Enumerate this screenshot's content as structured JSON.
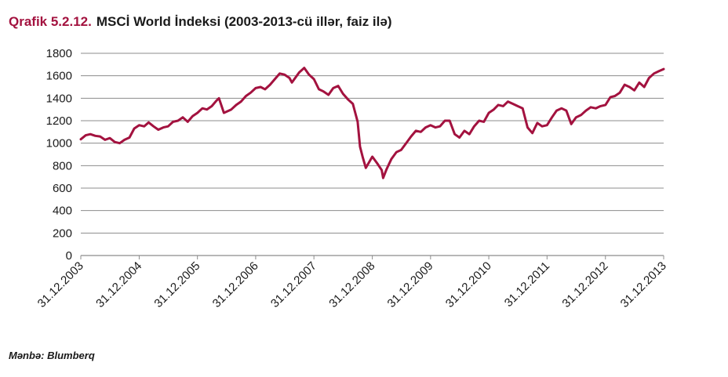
{
  "header": {
    "figure_number": "Qrafik 5.2.12.",
    "title": "MSCİ World İndeksi (2003-2013-cü illər, faiz ilə)"
  },
  "footer": {
    "source": "Mənbə: Blumberq"
  },
  "colors": {
    "series": "#a3123f",
    "grid": "#8c8c8c",
    "figure_number": "#a3123f"
  },
  "chart_data": {
    "type": "line",
    "title": "MSCİ World İndeksi (2003-2013-cü illər, faiz ilə)",
    "xlabel": "",
    "ylabel": "",
    "ylim": [
      0,
      1800
    ],
    "yticks": [
      0,
      200,
      400,
      600,
      800,
      1000,
      1200,
      1400,
      1600,
      1800
    ],
    "xticks": [
      "31.12.2003",
      "31.12.2004",
      "31.12.2005",
      "31.12.2006",
      "31.12.2007",
      "31.12.2008",
      "31.12.2009",
      "31.12.2010",
      "31.12.2011",
      "31.12.2012",
      "31.12.2013"
    ],
    "grid": true,
    "legend": "none",
    "series": [
      {
        "name": "",
        "points": [
          [
            "31.12.2003",
            1035
          ],
          [
            "31.01.2004",
            1070
          ],
          [
            "29.02.2004",
            1080
          ],
          [
            "31.03.2004",
            1065
          ],
          [
            "30.04.2004",
            1060
          ],
          [
            "31.05.2004",
            1030
          ],
          [
            "30.06.2004",
            1045
          ],
          [
            "31.07.2004",
            1010
          ],
          [
            "31.08.2004",
            1000
          ],
          [
            "30.09.2004",
            1030
          ],
          [
            "31.10.2004",
            1050
          ],
          [
            "30.11.2004",
            1130
          ],
          [
            "31.12.2004",
            1160
          ],
          [
            "31.01.2005",
            1150
          ],
          [
            "28.02.2005",
            1185
          ],
          [
            "31.03.2005",
            1150
          ],
          [
            "30.04.2005",
            1120
          ],
          [
            "31.05.2005",
            1140
          ],
          [
            "30.06.2005",
            1150
          ],
          [
            "31.07.2005",
            1190
          ],
          [
            "31.08.2005",
            1200
          ],
          [
            "30.09.2005",
            1230
          ],
          [
            "31.10.2005",
            1190
          ],
          [
            "30.11.2005",
            1240
          ],
          [
            "31.12.2005",
            1270
          ],
          [
            "31.01.2006",
            1310
          ],
          [
            "28.02.2006",
            1300
          ],
          [
            "31.03.2006",
            1330
          ],
          [
            "30.04.2006",
            1380
          ],
          [
            "15.05.2006",
            1400
          ],
          [
            "15.06.2006",
            1270
          ],
          [
            "31.07.2006",
            1300
          ],
          [
            "31.08.2006",
            1340
          ],
          [
            "30.09.2006",
            1370
          ],
          [
            "31.10.2006",
            1420
          ],
          [
            "30.11.2006",
            1450
          ],
          [
            "31.12.2006",
            1490
          ],
          [
            "31.01.2007",
            1500
          ],
          [
            "28.02.2007",
            1480
          ],
          [
            "31.03.2007",
            1520
          ],
          [
            "30.04.2007",
            1570
          ],
          [
            "31.05.2007",
            1620
          ],
          [
            "30.06.2007",
            1610
          ],
          [
            "31.07.2007",
            1580
          ],
          [
            "15.08.2007",
            1540
          ],
          [
            "30.09.2007",
            1630
          ],
          [
            "31.10.2007",
            1670
          ],
          [
            "30.11.2007",
            1610
          ],
          [
            "31.12.2007",
            1570
          ],
          [
            "31.01.2008",
            1480
          ],
          [
            "29.02.2008",
            1460
          ],
          [
            "31.03.2008",
            1430
          ],
          [
            "30.04.2008",
            1490
          ],
          [
            "31.05.2008",
            1510
          ],
          [
            "30.06.2008",
            1440
          ],
          [
            "31.07.2008",
            1390
          ],
          [
            "31.08.2008",
            1350
          ],
          [
            "30.09.2008",
            1190
          ],
          [
            "15.10.2008",
            970
          ],
          [
            "31.10.2008",
            880
          ],
          [
            "20.11.2008",
            780
          ],
          [
            "31.12.2008",
            880
          ],
          [
            "31.01.2009",
            820
          ],
          [
            "28.02.2009",
            760
          ],
          [
            "09.03.2009",
            690
          ],
          [
            "31.03.2009",
            770
          ],
          [
            "30.04.2009",
            860
          ],
          [
            "31.05.2009",
            920
          ],
          [
            "30.06.2009",
            940
          ],
          [
            "31.07.2009",
            1000
          ],
          [
            "31.08.2009",
            1060
          ],
          [
            "30.09.2009",
            1110
          ],
          [
            "31.10.2009",
            1100
          ],
          [
            "30.11.2009",
            1140
          ],
          [
            "31.12.2009",
            1160
          ],
          [
            "31.01.2010",
            1140
          ],
          [
            "28.02.2010",
            1150
          ],
          [
            "31.03.2010",
            1200
          ],
          [
            "30.04.2010",
            1200
          ],
          [
            "31.05.2010",
            1080
          ],
          [
            "30.06.2010",
            1050
          ],
          [
            "31.07.2010",
            1110
          ],
          [
            "31.08.2010",
            1080
          ],
          [
            "30.09.2010",
            1150
          ],
          [
            "31.10.2010",
            1200
          ],
          [
            "30.11.2010",
            1190
          ],
          [
            "31.12.2010",
            1270
          ],
          [
            "31.01.2011",
            1300
          ],
          [
            "28.02.2011",
            1340
          ],
          [
            "31.03.2011",
            1330
          ],
          [
            "30.04.2011",
            1370
          ],
          [
            "31.05.2011",
            1350
          ],
          [
            "30.06.2011",
            1330
          ],
          [
            "31.07.2011",
            1310
          ],
          [
            "31.08.2011",
            1140
          ],
          [
            "30.09.2011",
            1090
          ],
          [
            "31.10.2011",
            1180
          ],
          [
            "30.11.2011",
            1150
          ],
          [
            "31.12.2011",
            1160
          ],
          [
            "31.01.2012",
            1230
          ],
          [
            "29.02.2012",
            1290
          ],
          [
            "31.03.2012",
            1310
          ],
          [
            "30.04.2012",
            1290
          ],
          [
            "31.05.2012",
            1170
          ],
          [
            "30.06.2012",
            1230
          ],
          [
            "31.07.2012",
            1250
          ],
          [
            "31.08.2012",
            1290
          ],
          [
            "30.09.2012",
            1320
          ],
          [
            "31.10.2012",
            1310
          ],
          [
            "30.11.2012",
            1330
          ],
          [
            "31.12.2012",
            1340
          ],
          [
            "31.01.2013",
            1410
          ],
          [
            "28.02.2013",
            1420
          ],
          [
            "31.03.2013",
            1450
          ],
          [
            "30.04.2013",
            1520
          ],
          [
            "31.05.2013",
            1500
          ],
          [
            "30.06.2013",
            1470
          ],
          [
            "31.07.2013",
            1540
          ],
          [
            "31.08.2013",
            1500
          ],
          [
            "30.09.2013",
            1580
          ],
          [
            "31.10.2013",
            1620
          ],
          [
            "30.11.2013",
            1640
          ],
          [
            "31.12.2013",
            1660
          ]
        ]
      }
    ]
  }
}
